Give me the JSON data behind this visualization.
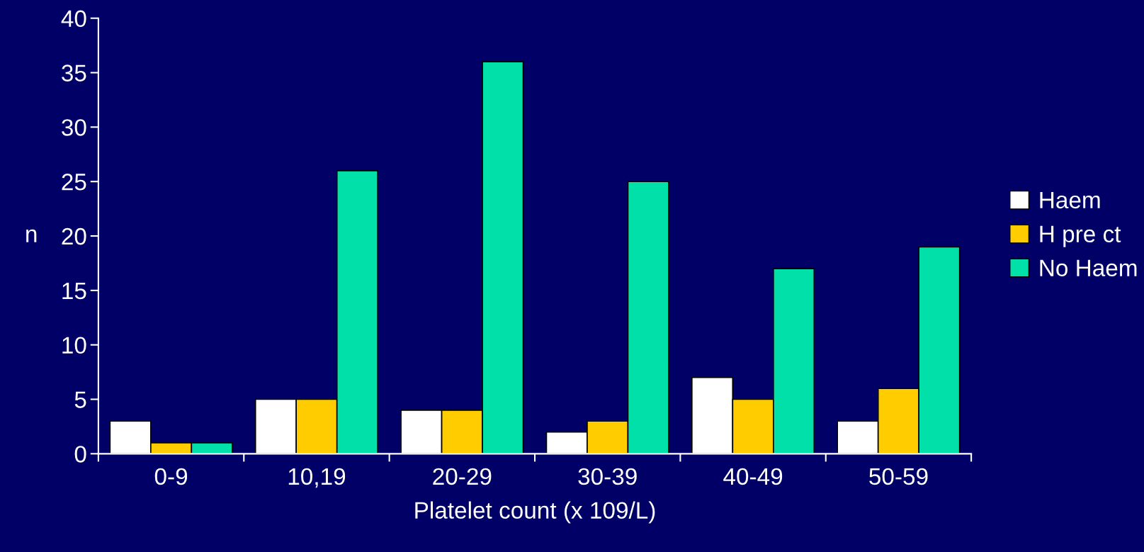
{
  "chart_data": {
    "type": "bar",
    "xlabel": "Platelet count (x 109/L)",
    "ylabel": "n",
    "categories": [
      "0-9",
      "10,19",
      "20-29",
      "30-39",
      "40-49",
      "50-59"
    ],
    "series": [
      {
        "name": "Haem",
        "color": "#ffffff",
        "values": [
          3,
          5,
          4,
          2,
          7,
          3
        ]
      },
      {
        "name": "H pre ct",
        "color": "#ffcc00",
        "values": [
          1,
          5,
          4,
          3,
          5,
          6
        ]
      },
      {
        "name": "No Haem",
        "color": "#00e0a8",
        "values": [
          1,
          26,
          36,
          25,
          17,
          19
        ]
      }
    ],
    "ylim": [
      0,
      40
    ],
    "yticks": [
      0,
      5,
      10,
      15,
      20,
      25,
      30,
      35,
      40
    ],
    "grid": false,
    "legend": "right"
  }
}
